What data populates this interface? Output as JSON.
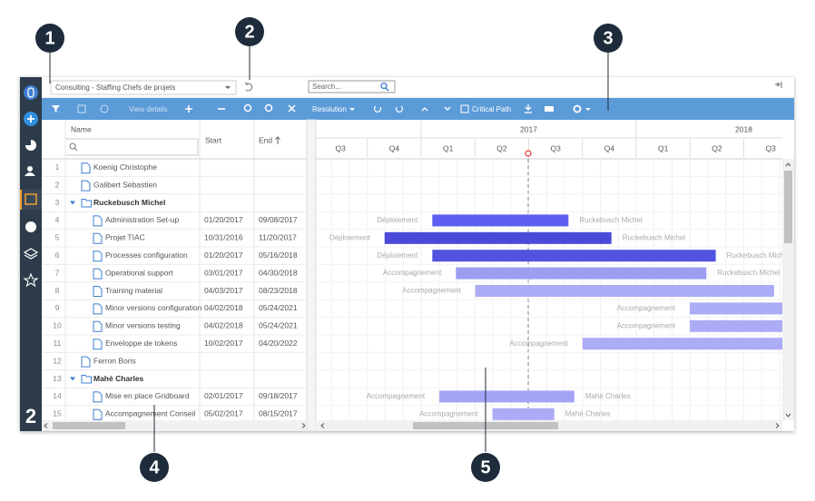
{
  "callouts": [
    "1",
    "2",
    "3",
    "4",
    "5"
  ],
  "sidebar_badge": "2",
  "topbar": {
    "project": "Consulting - Staffing Chefs de projets",
    "search_placeholder": "Search..."
  },
  "toolbar": {
    "view_details": "View details",
    "resolution": "Resolution",
    "critical_path": "Critical Path"
  },
  "table": {
    "columns": {
      "name": "Name",
      "start": "Start",
      "end": "End"
    },
    "rows": [
      {
        "num": 1,
        "name": "Koenig Christophe",
        "level": 0
      },
      {
        "num": 2,
        "name": "Galibert Sébastien",
        "level": 0
      },
      {
        "num": 3,
        "name": "Ruckebusch Michel",
        "level": 0,
        "group": true
      },
      {
        "num": 4,
        "name": "Administration Set-up",
        "start": "01/20/2017",
        "end": "09/08/2017",
        "level": 1,
        "bar": {
          "color": "#5e5ef2",
          "left_label": "Déploiement",
          "right_label": "Ruckebusch Michel"
        }
      },
      {
        "num": 5,
        "name": "Projet TIAC",
        "start": "10/31/2016",
        "end": "11/20/2017",
        "level": 1,
        "bar": {
          "color": "#4b4bd8",
          "left_label": "Déploiement",
          "right_label": "Ruckebusch Michel"
        }
      },
      {
        "num": 6,
        "name": "Processes configuration",
        "start": "01/20/2017",
        "end": "05/16/2018",
        "level": 1,
        "bar": {
          "color": "#5252e0",
          "left_label": "Déploiement",
          "right_label": "Ruckebusch Michel"
        }
      },
      {
        "num": 7,
        "name": "Operational support",
        "start": "03/01/2017",
        "end": "04/30/2018",
        "level": 1,
        "bar": {
          "color": "#9d9df4",
          "left_label": "Accompagnement",
          "right_label": "Ruckebusch Michel"
        }
      },
      {
        "num": 8,
        "name": "Training material",
        "start": "04/03/2017",
        "end": "08/23/2018",
        "level": 1,
        "bar": {
          "color": "#ababf6",
          "left_label": "Accompagnement"
        }
      },
      {
        "num": 9,
        "name": "Minor versions configuration",
        "start": "04/02/2018",
        "end": "05/24/2021",
        "level": 1,
        "bar": {
          "color": "#ababf6",
          "left_label": "Accompagnement"
        }
      },
      {
        "num": 10,
        "name": "Minor versions testing",
        "start": "04/02/2018",
        "end": "05/24/2021",
        "level": 1,
        "bar": {
          "color": "#ababf6",
          "left_label": "Accompagnement"
        }
      },
      {
        "num": 11,
        "name": "Enveloppe de tokens",
        "start": "10/02/2017",
        "end": "04/20/2022",
        "level": 1,
        "bar": {
          "color": "#ababf6",
          "left_label": "Accompagnement"
        }
      },
      {
        "num": 12,
        "name": "Ferron Boris",
        "level": 0
      },
      {
        "num": 13,
        "name": "Mahé Charles",
        "level": 0,
        "group": true
      },
      {
        "num": 14,
        "name": "Mise en place Gridboard",
        "start": "02/01/2017",
        "end": "09/18/2017",
        "level": 1,
        "bar": {
          "color": "#a4a4f5",
          "left_label": "Accompagnement",
          "right_label": "Mahé Charles"
        }
      },
      {
        "num": 15,
        "name": "Accompagnement Conseil",
        "start": "05/02/2017",
        "end": "08/15/2017",
        "level": 1,
        "bar": {
          "color": "#ababf6",
          "left_label": "Accompagnement",
          "right_label": "Mahé Charles"
        }
      }
    ]
  },
  "timeline": {
    "years": [
      "2017",
      "2018"
    ],
    "quarters": [
      "Q3",
      "Q4",
      "Q1",
      "Q2",
      "Q3",
      "Q4",
      "Q1",
      "Q2",
      "Q3"
    ]
  }
}
